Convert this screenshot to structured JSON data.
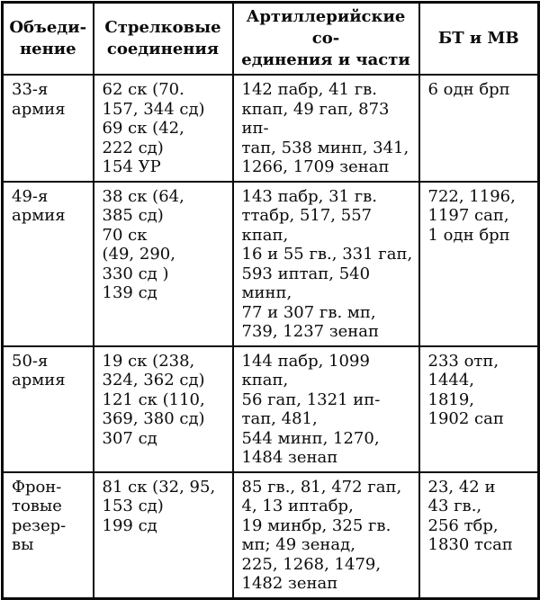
{
  "colors": {
    "border": "#0b0b0b",
    "text": "#0b0b0b",
    "background": "#ffffff"
  },
  "table": {
    "headers": [
      "Объеди-\nнение",
      "Стрелковые\nсоединения",
      "Артиллерийские со-\nединения и части",
      "БТ и МВ"
    ],
    "rows": [
      {
        "formation": "33-я\nармия",
        "rifle": "62 ск (70.\n157, 344 сд)\n69 ск (42,\n222 сд)\n154 УР",
        "artillery": "142 пабр, 41 гв.\nкпап, 49 гап, 873 ип-\nтап, 538 минп, 341,\n1266, 1709 зенап",
        "bt_mv": "6 одн брп"
      },
      {
        "formation": "49-я\nармия",
        "rifle": "38 ск (64,\n385 сд)\n70 ск\n(49, 290,\n330 сд )\n139 сд",
        "artillery": "143 пабр, 31 гв.\nттабр, 517, 557 кпап,\n16 и 55 гв., 331 гап,\n593 иптап, 540 минп,\n77 и 307 гв. мп,\n739, 1237 зенап",
        "bt_mv": "722, 1196,\n1197 сап,\n1 одн брп"
      },
      {
        "formation": "50-я\nармия",
        "rifle": "19 ск (238,\n324, 362 сд)\n121 ск (110,\n369, 380 сд)\n307 сд",
        "artillery": "144 пабр, 1099 кпап,\n56 гап, 1321 ип-\nтап, 481,\n544 минп, 1270,\n1484 зенап",
        "bt_mv": "233 отп,\n1444,\n1819,\n1902 сап"
      },
      {
        "formation": "Фрон-\nтовые\nрезер-\nвы",
        "rifle": "81 ск (32, 95,\n153 сд)\n199 сд",
        "artillery": "85 гв., 81, 472 гап,\n4, 13 иптабр,\n19 минбр, 325 гв.\nмп; 49 зенад,\n225, 1268, 1479,\n1482 зенап",
        "bt_mv": "23, 42 и\n43 гв.,\n256 тбр,\n1830 тсап"
      }
    ]
  }
}
